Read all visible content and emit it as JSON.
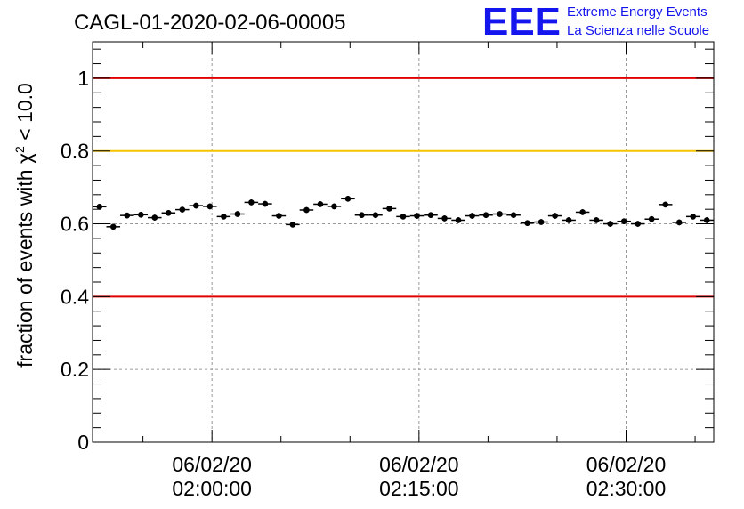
{
  "header": {
    "run_title": "CAGL-01-2020-02-06-00005",
    "logo_letters": "EEE",
    "logo_line1": "Extreme Energy Events",
    "logo_line2": "La Scienza nelle Scuole"
  },
  "colors": {
    "logo_blue": "#1515ee",
    "red_line": "#e00000",
    "yellow_line": "#f5c400",
    "points": "#000000",
    "grid": "#999999"
  },
  "chart_data": {
    "type": "scatter",
    "title": "CAGL-01-2020-02-06-00005",
    "ylabel_prefix": "fraction of events with ",
    "ylabel_chi": "χ",
    "ylabel_sup": "2",
    "ylabel_suffix": " < 10.0",
    "xlabel": "",
    "ylim": [
      0,
      1.1
    ],
    "xlim_minutes": [
      111.35,
      156.35
    ],
    "y_ticks": [
      0,
      0.2,
      0.4,
      0.6,
      0.8,
      1
    ],
    "y_tick_labels": [
      "0",
      "0.2",
      "0.4",
      "0.6",
      "0.8",
      "1"
    ],
    "x_ticks": [
      {
        "minutes": 120,
        "date": "06/02/20",
        "time": "02:00:00"
      },
      {
        "minutes": 135,
        "date": "06/02/20",
        "time": "02:15:00"
      },
      {
        "minutes": 150,
        "date": "06/02/20",
        "time": "02:30:00"
      }
    ],
    "reference_lines": [
      {
        "y": 1.0,
        "color": "#e00000"
      },
      {
        "y": 0.8,
        "color": "#f5c400"
      },
      {
        "y": 0.4,
        "color": "#e00000"
      }
    ],
    "grid": true,
    "series": [
      {
        "x_minutes": [
          111.85,
          112.85,
          113.85,
          114.85,
          115.85,
          116.85,
          117.85,
          118.85,
          119.85,
          120.85,
          121.85,
          122.85,
          123.85,
          124.85,
          125.85,
          126.85,
          127.85,
          128.85,
          129.85,
          130.85,
          131.85,
          132.85,
          133.85,
          134.85,
          135.85,
          136.85,
          137.85,
          138.85,
          139.85,
          140.85,
          141.85,
          142.85,
          143.85,
          144.85,
          145.85,
          146.85,
          147.85,
          148.85,
          149.85,
          150.85,
          151.85,
          152.85,
          153.85,
          154.85,
          155.85
        ],
        "y": [
          0.647,
          0.592,
          0.623,
          0.625,
          0.617,
          0.63,
          0.639,
          0.65,
          0.648,
          0.62,
          0.627,
          0.659,
          0.655,
          0.622,
          0.598,
          0.638,
          0.654,
          0.648,
          0.669,
          0.624,
          0.624,
          0.642,
          0.62,
          0.622,
          0.624,
          0.615,
          0.61,
          0.622,
          0.624,
          0.627,
          0.624,
          0.602,
          0.605,
          0.622,
          0.61,
          0.632,
          0.61,
          0.6,
          0.607,
          0.6,
          0.613,
          0.653,
          0.604,
          0.62,
          0.61
        ],
        "y_err": 0.008,
        "x_half_width": 0.5
      }
    ]
  }
}
